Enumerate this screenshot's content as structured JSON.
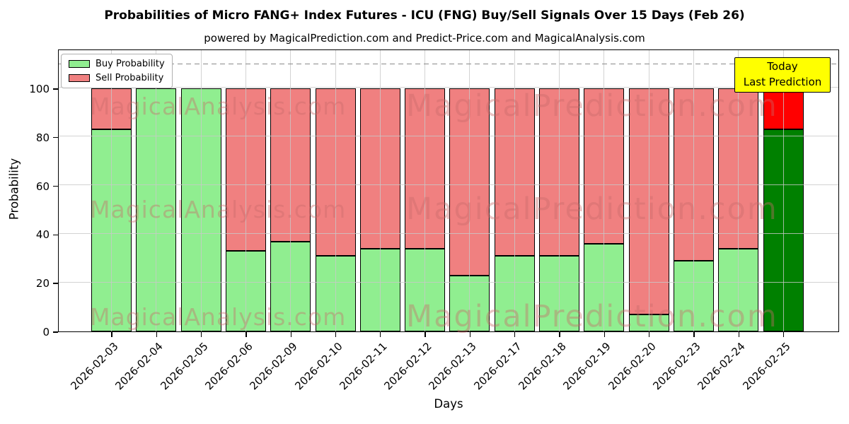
{
  "title": "Probabilities of Micro FANG+ Index Futures - ICU (FNG) Buy/Sell Signals Over 15 Days (Feb 26)",
  "subtitle": "powered by MagicalPrediction.com and Predict-Price.com and MagicalAnalysis.com",
  "axis": {
    "xlabel": "Days",
    "ylabel": "Probability",
    "ytick_labels": [
      "0",
      "20",
      "40",
      "60",
      "80",
      "100"
    ]
  },
  "legend": {
    "items": [
      {
        "label": "Buy Probability",
        "color": "#90ee90"
      },
      {
        "label": "Sell Probability",
        "color": "#f08080"
      }
    ]
  },
  "annotation": {
    "line1": "Today",
    "line2": "Last Prediction",
    "bg_color": "#ffff00"
  },
  "watermarks": {
    "left_text": "MagicalAnalysis.com",
    "right_text": "MagicalPrediction.com"
  },
  "colors": {
    "buy": "#90ee90",
    "sell": "#f08080",
    "today_buy": "#008000",
    "today_sell": "#ff0000",
    "bar_edge": "#000000",
    "grid": "#c8c8c8",
    "dashed_line": "#8a8a8a",
    "watermark": "rgba(200,105,105,0.40)"
  },
  "chart_data": {
    "type": "bar",
    "stacked": true,
    "title": "Probabilities of Micro FANG+ Index Futures - ICU (FNG) Buy/Sell Signals Over 15 Days (Feb 26)",
    "xlabel": "Days",
    "ylabel": "Probability",
    "categories": [
      "2026-02-03",
      "2026-02-04",
      "2026-02-05",
      "2026-02-06",
      "2026-02-09",
      "2026-02-10",
      "2026-02-11",
      "2026-02-12",
      "2026-02-13",
      "2026-02-17",
      "2026-02-18",
      "2026-02-19",
      "2026-02-20",
      "2026-02-23",
      "2026-02-24",
      "2026-02-25"
    ],
    "series": [
      {
        "name": "Buy Probability",
        "values": [
          83,
          100,
          100,
          33,
          37,
          31,
          34,
          34,
          23,
          31,
          31,
          36,
          7,
          29,
          34,
          83
        ]
      },
      {
        "name": "Sell Probability",
        "values": [
          17,
          0,
          0,
          67,
          63,
          69,
          66,
          66,
          77,
          69,
          69,
          64,
          93,
          71,
          66,
          17
        ]
      }
    ],
    "today_category": "2026-02-25",
    "yticks": [
      0,
      20,
      40,
      60,
      80,
      100
    ],
    "ylim": [
      0,
      115.4
    ],
    "dashed_line_y": 110,
    "grid": true,
    "legend_position": "upper left"
  }
}
